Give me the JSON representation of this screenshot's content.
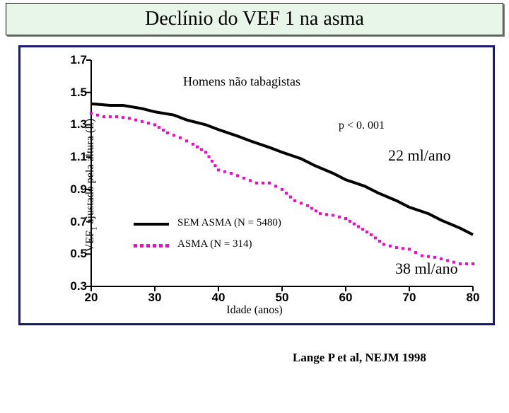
{
  "title": "Declínio do VEF 1 na asma",
  "chart": {
    "type": "line",
    "y_label_html": "VEF<sub>1</sub> ajustado pela altura (L)",
    "x_label": "Idade (anos)",
    "ylim": [
      0.3,
      1.7
    ],
    "y_ticks": [
      0.3,
      0.5,
      0.7,
      0.9,
      1.1,
      1.3,
      1.5,
      1.7
    ],
    "xlim": [
      20,
      80
    ],
    "x_ticks": [
      20,
      30,
      40,
      50,
      60,
      70,
      80
    ],
    "background_color": "#ffffff",
    "border_color": "#1a1a6e",
    "tick_font": {
      "family": "Arial",
      "size": 17,
      "weight": "bold",
      "color": "#000000"
    },
    "series": [
      {
        "name": "SEM ASMA",
        "style": "solid",
        "color": "#000000",
        "line_width": 4,
        "x": [
          20,
          23,
          25,
          28,
          30,
          33,
          35,
          38,
          40,
          43,
          45,
          48,
          50,
          53,
          55,
          58,
          60,
          63,
          65,
          68,
          70,
          73,
          75,
          78,
          80
        ],
        "y": [
          1.43,
          1.42,
          1.42,
          1.4,
          1.38,
          1.36,
          1.33,
          1.3,
          1.27,
          1.23,
          1.2,
          1.16,
          1.13,
          1.09,
          1.05,
          1.0,
          0.96,
          0.92,
          0.88,
          0.83,
          0.79,
          0.75,
          0.71,
          0.66,
          0.62
        ]
      },
      {
        "name": "ASMA",
        "style": "dotted",
        "color": "#ff00ce",
        "marker": "square",
        "marker_size": 4,
        "x": [
          20,
          22,
          24,
          26,
          28,
          30,
          32,
          34,
          36,
          38,
          40,
          42,
          44,
          46,
          48,
          50,
          52,
          54,
          56,
          58,
          60,
          62,
          64,
          66,
          68,
          70,
          72,
          74,
          76,
          78,
          80
        ],
        "y": [
          1.37,
          1.35,
          1.35,
          1.34,
          1.32,
          1.3,
          1.25,
          1.22,
          1.18,
          1.13,
          1.02,
          1.0,
          0.97,
          0.94,
          0.94,
          0.9,
          0.83,
          0.8,
          0.75,
          0.74,
          0.72,
          0.67,
          0.62,
          0.56,
          0.54,
          0.53,
          0.49,
          0.48,
          0.46,
          0.44,
          0.44
        ]
      }
    ],
    "annotations": {
      "subtitle": "Homens não tabagistas",
      "p_value": "p < 0. 001",
      "rate_sem_asma": "22 ml/ano",
      "rate_asma": "38 ml/ano",
      "legend_sem": "SEM ASMA (N = 5480)",
      "legend_asma": "ASMA (N = 314)"
    }
  },
  "citation": "Lange P et al, NEJM 1998",
  "title_box": {
    "background": "#e8f5e9"
  }
}
